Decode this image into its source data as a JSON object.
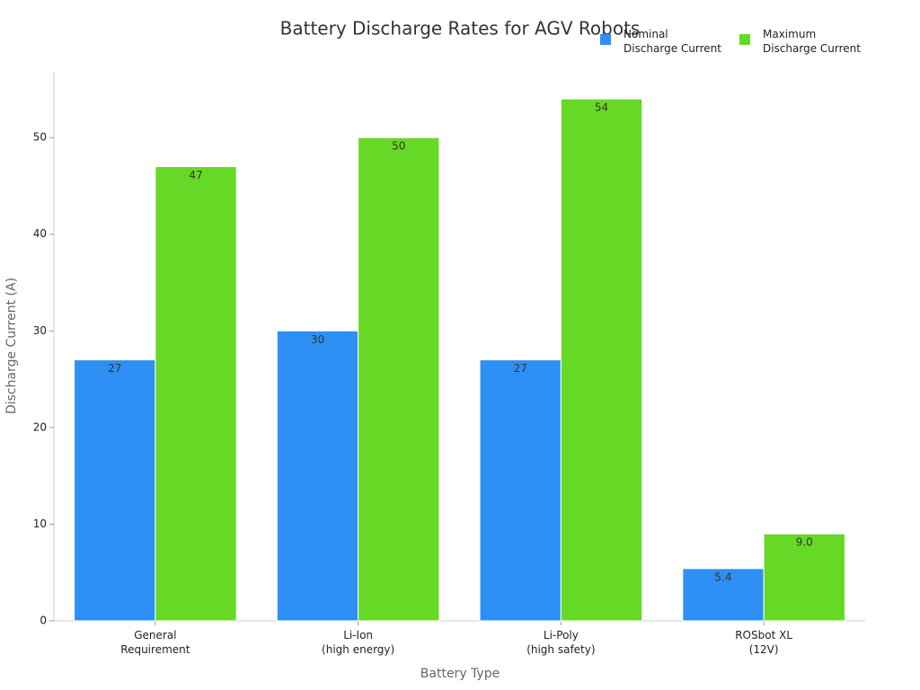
{
  "chart_data": {
    "type": "bar",
    "title": "Battery Discharge Rates for AGV Robots",
    "x_label": "Battery Type",
    "y_label": "Discharge Current (A)",
    "categories": [
      "General\nRequirement",
      "Li-Ion\n(high energy)",
      "Li-Poly\n(high safety)",
      "ROSbot XL\n(12V)"
    ],
    "series": [
      {
        "name": "Nominal\nDischarge Current",
        "color": "#2e8ff5",
        "values": [
          27,
          30,
          27,
          5.4
        ]
      },
      {
        "name": "Maximum\nDischarge Current",
        "color": "#66d926",
        "values": [
          47,
          50,
          54,
          9.0
        ],
        "value_labels": [
          "47",
          "50",
          "54",
          "9.0"
        ]
      }
    ],
    "ylim": [
      0,
      56.8
    ],
    "yticks": [
      0,
      10,
      20,
      30,
      40,
      50
    ],
    "grid": false,
    "legend": "upper right"
  }
}
